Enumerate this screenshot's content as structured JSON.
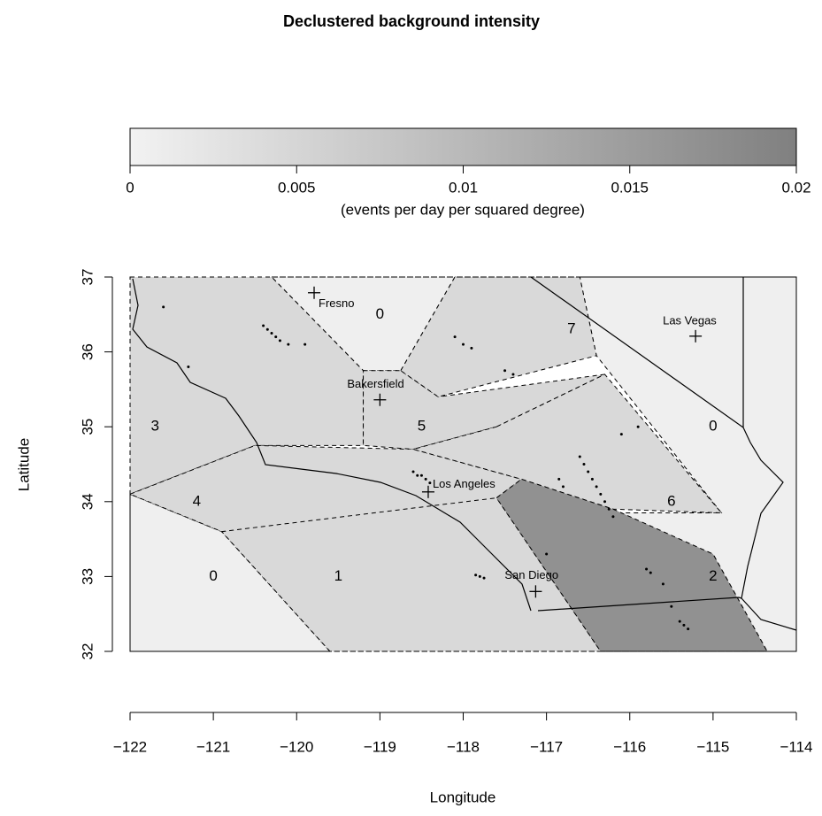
{
  "chart_data": {
    "type": "map",
    "title": "Declustered background intensity",
    "colorbar": {
      "lim": [
        0,
        0.02
      ],
      "ticks": [
        0,
        0.005,
        0.01,
        0.015,
        0.02
      ],
      "colors": [
        "#f2f2f2",
        "#808080"
      ],
      "label": "(events per day per squared degree)"
    },
    "xlabel": "Longitude",
    "ylabel": "Latitude",
    "xlim": [
      -122,
      -114
    ],
    "ylim": [
      32,
      37
    ],
    "xticks": [
      {
        "value": -122,
        "label": "−122"
      },
      {
        "value": -121,
        "label": "−121"
      },
      {
        "value": -120,
        "label": "−120"
      },
      {
        "value": -119,
        "label": "−119"
      },
      {
        "value": -118,
        "label": "−118"
      },
      {
        "value": -117,
        "label": "−117"
      },
      {
        "value": -116,
        "label": "−116"
      },
      {
        "value": -115,
        "label": "−115"
      },
      {
        "value": -114,
        "label": "−114"
      }
    ],
    "yticks": [
      32,
      33,
      34,
      35,
      36,
      37
    ],
    "regions": [
      {
        "label": "0",
        "intensity": 0.0005,
        "label_at": [
          -121.0,
          33.0
        ],
        "polygon": [
          [
            -122,
            34.1
          ],
          [
            -120.9,
            33.6
          ],
          [
            -119.6,
            32
          ],
          [
            -122,
            32
          ]
        ]
      },
      {
        "label": "0",
        "intensity": 0.0005,
        "label_at": [
          -119.0,
          36.5
        ],
        "polygon": [
          [
            -120.3,
            37
          ],
          [
            -118.1,
            37
          ],
          [
            -118.75,
            35.75
          ],
          [
            -119.2,
            35.75
          ]
        ]
      },
      {
        "label": "0",
        "intensity": 0.0005,
        "label_at": [
          -115.0,
          35.0
        ],
        "polygon": [
          [
            -116.6,
            37
          ],
          [
            -114,
            37
          ],
          [
            -114,
            32
          ],
          [
            -114.35,
            32
          ],
          [
            -115.0,
            33.3
          ],
          [
            -116.2,
            33.85
          ],
          [
            -114.9,
            33.85
          ],
          [
            -116.4,
            35.95
          ]
        ]
      },
      {
        "label": "1",
        "intensity": 0.0044,
        "label_at": [
          -119.5,
          33.0
        ],
        "polygon": [
          [
            -120.9,
            33.6
          ],
          [
            -117.9,
            34.05
          ],
          [
            -117.6,
            34.05
          ],
          [
            -116.35,
            32
          ],
          [
            -119.6,
            32
          ]
        ]
      },
      {
        "label": "3",
        "intensity": 0.0044,
        "label_at": [
          -121.7,
          35.0
        ],
        "polygon": [
          [
            -122,
            37
          ],
          [
            -120.3,
            37
          ],
          [
            -119.2,
            35.75
          ],
          [
            -119.2,
            34.75
          ],
          [
            -120.5,
            34.75
          ],
          [
            -122,
            34.1
          ]
        ]
      },
      {
        "label": "4",
        "intensity": 0.0044,
        "label_at": [
          -121.2,
          34.0
        ],
        "polygon": [
          [
            -122,
            34.1
          ],
          [
            -120.5,
            34.75
          ],
          [
            -118.6,
            34.7
          ],
          [
            -117.3,
            34.3
          ],
          [
            -117.6,
            34.05
          ],
          [
            -120.9,
            33.6
          ]
        ]
      },
      {
        "label": "5",
        "intensity": 0.0045,
        "label_at": [
          -118.5,
          35.0
        ],
        "polygon": [
          [
            -119.2,
            35.75
          ],
          [
            -118.75,
            35.75
          ],
          [
            -118.3,
            35.4
          ],
          [
            -116.3,
            35.7
          ],
          [
            -117.6,
            35.0
          ],
          [
            -118.6,
            34.7
          ],
          [
            -119.2,
            34.75
          ]
        ]
      },
      {
        "label": "7",
        "intensity": 0.0044,
        "label_at": [
          -116.7,
          36.3
        ],
        "polygon": [
          [
            -118.75,
            35.75
          ],
          [
            -118.1,
            37
          ],
          [
            -116.6,
            37
          ],
          [
            -116.4,
            35.95
          ],
          [
            -118.3,
            35.4
          ]
        ]
      },
      {
        "label": "6",
        "intensity": 0.0044,
        "label_at": [
          -115.5,
          34.0
        ],
        "polygon": [
          [
            -117.6,
            35.0
          ],
          [
            -116.3,
            35.7
          ],
          [
            -114.9,
            33.85
          ],
          [
            -116.2,
            33.9
          ],
          [
            -117.3,
            34.3
          ],
          [
            -118.6,
            34.7
          ]
        ]
      },
      {
        "label": "2",
        "intensity": 0.017,
        "label_at": [
          -115.0,
          33.0
        ],
        "polygon": [
          [
            -117.6,
            34.05
          ],
          [
            -117.3,
            34.3
          ],
          [
            -116.2,
            33.9
          ],
          [
            -115.0,
            33.3
          ],
          [
            -114.35,
            32
          ],
          [
            -116.35,
            32
          ]
        ]
      }
    ],
    "cities": [
      {
        "name": "Fresno",
        "lon": -119.79,
        "lat": 36.79
      },
      {
        "name": "Bakersfield",
        "lon": -119.0,
        "lat": 35.36
      },
      {
        "name": "Los Angeles",
        "lon": -118.42,
        "lat": 34.13
      },
      {
        "name": "San Diego",
        "lon": -117.13,
        "lat": 32.8
      },
      {
        "name": "Las Vegas",
        "lon": -115.21,
        "lat": 36.21
      }
    ],
    "events": {
      "lon": [
        -120.4,
        -120.35,
        -120.3,
        -120.25,
        -120.2,
        -120.1,
        -119.9,
        -121.6,
        -121.3,
        -118.6,
        -118.55,
        -118.5,
        -118.45,
        -118.4,
        -117.8,
        -117.75,
        -117.85,
        -116.6,
        -116.55,
        -116.5,
        -116.45,
        -116.4,
        -116.35,
        -116.3,
        -116.25,
        -116.2,
        -116.85,
        -116.8,
        -115.8,
        -115.75,
        -115.6,
        -115.5,
        -115.4,
        -115.35,
        -115.3,
        -118.0,
        -117.9,
        -117.5,
        -117.4,
        -118.1,
        -116.1,
        -115.9,
        -117.0
      ],
      "lat": [
        36.35,
        36.3,
        36.25,
        36.2,
        36.15,
        36.1,
        36.1,
        36.6,
        35.8,
        34.4,
        34.35,
        34.35,
        34.3,
        34.25,
        33.0,
        32.98,
        33.02,
        34.6,
        34.5,
        34.4,
        34.3,
        34.2,
        34.1,
        34.0,
        33.9,
        33.8,
        34.3,
        34.2,
        33.1,
        33.05,
        32.9,
        32.6,
        32.4,
        32.35,
        32.3,
        36.1,
        36.05,
        35.75,
        35.7,
        36.2,
        34.9,
        35.0,
        33.3
      ]
    }
  }
}
